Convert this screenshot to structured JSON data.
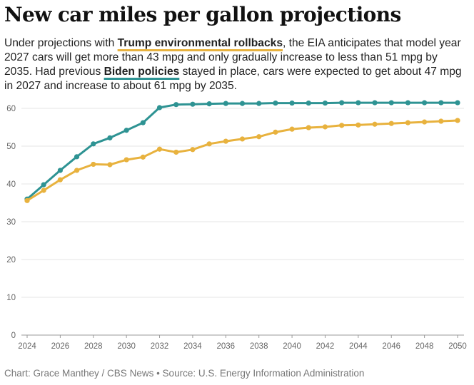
{
  "title": "New car miles per gallon projections",
  "subtitle": {
    "p1": "Under projections with ",
    "trump_label": "Trump environmental rollbacks",
    "p2": ", the EIA anticipates that model year 2027 cars will get more than 43 mpg and only gradually increase to less than 51 mpg by 2035. Had previous ",
    "biden_label": "Biden policies",
    "p3": " stayed in place, cars were expected to get about 47 mpg in 2027 and increase to about 61 mpg by 2035."
  },
  "credit": "Chart: Grace Manthey / CBS News • Source: U.S. Energy Information Administration",
  "chart_data": {
    "type": "line",
    "x": [
      2024,
      2025,
      2026,
      2027,
      2028,
      2029,
      2030,
      2031,
      2032,
      2033,
      2034,
      2035,
      2036,
      2037,
      2038,
      2039,
      2040,
      2041,
      2042,
      2043,
      2044,
      2045,
      2046,
      2047,
      2048,
      2049,
      2050
    ],
    "series": [
      {
        "name": "Biden policies",
        "color": "#2E9393",
        "values": [
          36.0,
          39.8,
          43.6,
          47.2,
          50.6,
          52.2,
          54.2,
          56.2,
          60.2,
          61.0,
          61.1,
          61.2,
          61.3,
          61.3,
          61.3,
          61.4,
          61.4,
          61.4,
          61.4,
          61.5,
          61.5,
          61.5,
          61.5,
          61.5,
          61.5,
          61.5,
          61.5
        ]
      },
      {
        "name": "Trump environmental rollbacks",
        "color": "#E8B23E",
        "values": [
          35.6,
          38.3,
          41.1,
          43.6,
          45.2,
          45.1,
          46.4,
          47.1,
          49.2,
          48.4,
          49.1,
          50.6,
          51.3,
          51.9,
          52.5,
          53.7,
          54.5,
          54.9,
          55.1,
          55.5,
          55.6,
          55.8,
          56.0,
          56.2,
          56.4,
          56.6,
          56.8
        ]
      }
    ],
    "x_ticks": [
      "2024",
      "2026",
      "2028",
      "2030",
      "2032",
      "2034",
      "2036",
      "2038",
      "2040",
      "2042",
      "2044",
      "2046",
      "2048",
      "2050"
    ],
    "y_ticks": [
      "0",
      "10",
      "20",
      "30",
      "40",
      "50",
      "60"
    ],
    "xlim": [
      2024,
      2050
    ],
    "ylim": [
      0,
      60
    ],
    "grid": "horizontal",
    "xlabel": "",
    "ylabel": ""
  }
}
